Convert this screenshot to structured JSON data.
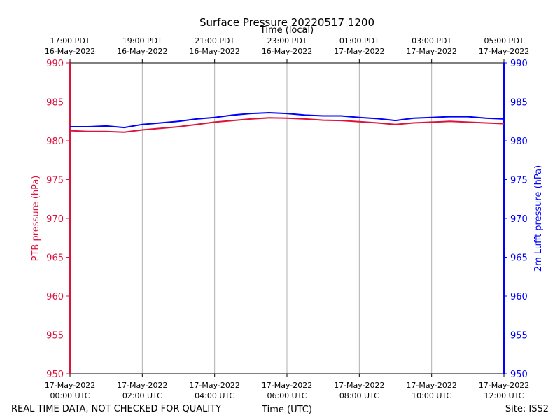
{
  "chart_data": {
    "type": "line",
    "title": "Surface Pressure 20220517 1200",
    "xlabel": "Time (UTC)",
    "x2label": "Time (local)",
    "ylabel": "PTB pressure (hPa)",
    "y2label": "2m Lufft pressure (hPa)",
    "ylim": [
      950,
      990
    ],
    "y2lim": [
      950,
      990
    ],
    "xlim_hours_utc": [
      0,
      12
    ],
    "yticks": [
      "950",
      "955",
      "960",
      "965",
      "970",
      "975",
      "980",
      "985",
      "990"
    ],
    "bottom_ticks": [
      {
        "hour": 0,
        "date": "17-May-2022",
        "time": "00:00 UTC"
      },
      {
        "hour": 2,
        "date": "17-May-2022",
        "time": "02:00 UTC"
      },
      {
        "hour": 4,
        "date": "17-May-2022",
        "time": "04:00 UTC"
      },
      {
        "hour": 6,
        "date": "17-May-2022",
        "time": "06:00 UTC"
      },
      {
        "hour": 8,
        "date": "17-May-2022",
        "time": "08:00 UTC"
      },
      {
        "hour": 10,
        "date": "17-May-2022",
        "time": "10:00 UTC"
      },
      {
        "hour": 12,
        "date": "17-May-2022",
        "time": "12:00 UTC"
      }
    ],
    "top_ticks": [
      {
        "hour": 0,
        "time": "17:00 PDT",
        "date": "16-May-2022"
      },
      {
        "hour": 2,
        "time": "19:00 PDT",
        "date": "16-May-2022"
      },
      {
        "hour": 4,
        "time": "21:00 PDT",
        "date": "16-May-2022"
      },
      {
        "hour": 6,
        "time": "23:00 PDT",
        "date": "16-May-2022"
      },
      {
        "hour": 8,
        "time": "01:00 PDT",
        "date": "17-May-2022"
      },
      {
        "hour": 10,
        "time": "03:00 PDT",
        "date": "17-May-2022"
      },
      {
        "hour": 12,
        "time": "05:00 PDT",
        "date": "17-May-2022"
      }
    ],
    "grid": "vertical",
    "series": [
      {
        "axis": "left",
        "color": "#dc143c",
        "x": [
          0,
          0.5,
          1,
          1.5,
          2,
          2.5,
          3,
          3.5,
          4,
          4.5,
          5,
          5.5,
          6,
          6.5,
          7,
          7.5,
          8,
          8.5,
          9,
          9.5,
          10,
          10.5,
          11,
          11.5,
          12
        ],
        "values": [
          981.3,
          981.2,
          981.2,
          981.1,
          981.4,
          981.6,
          981.8,
          982.1,
          982.4,
          982.6,
          982.8,
          982.95,
          982.9,
          982.8,
          982.65,
          982.6,
          982.45,
          982.3,
          982.1,
          982.3,
          982.4,
          982.5,
          982.4,
          982.3,
          982.2
        ]
      },
      {
        "axis": "right",
        "color": "#0000ff",
        "x": [
          0,
          0.5,
          1,
          1.5,
          2,
          2.5,
          3,
          3.5,
          4,
          4.5,
          5,
          5.5,
          6,
          6.5,
          7,
          7.5,
          8,
          8.5,
          9,
          9.5,
          10,
          10.5,
          11,
          11.5,
          12
        ],
        "values": [
          981.8,
          981.8,
          981.9,
          981.7,
          982.1,
          982.3,
          982.5,
          982.8,
          983.0,
          983.3,
          983.5,
          983.6,
          983.5,
          983.3,
          983.2,
          983.2,
          983.0,
          982.85,
          982.6,
          982.9,
          983.0,
          983.1,
          983.1,
          982.9,
          982.8
        ]
      }
    ]
  },
  "footer": {
    "disclaimer": "REAL TIME DATA, NOT CHECKED FOR QUALITY",
    "site": "Site: ISS2"
  }
}
